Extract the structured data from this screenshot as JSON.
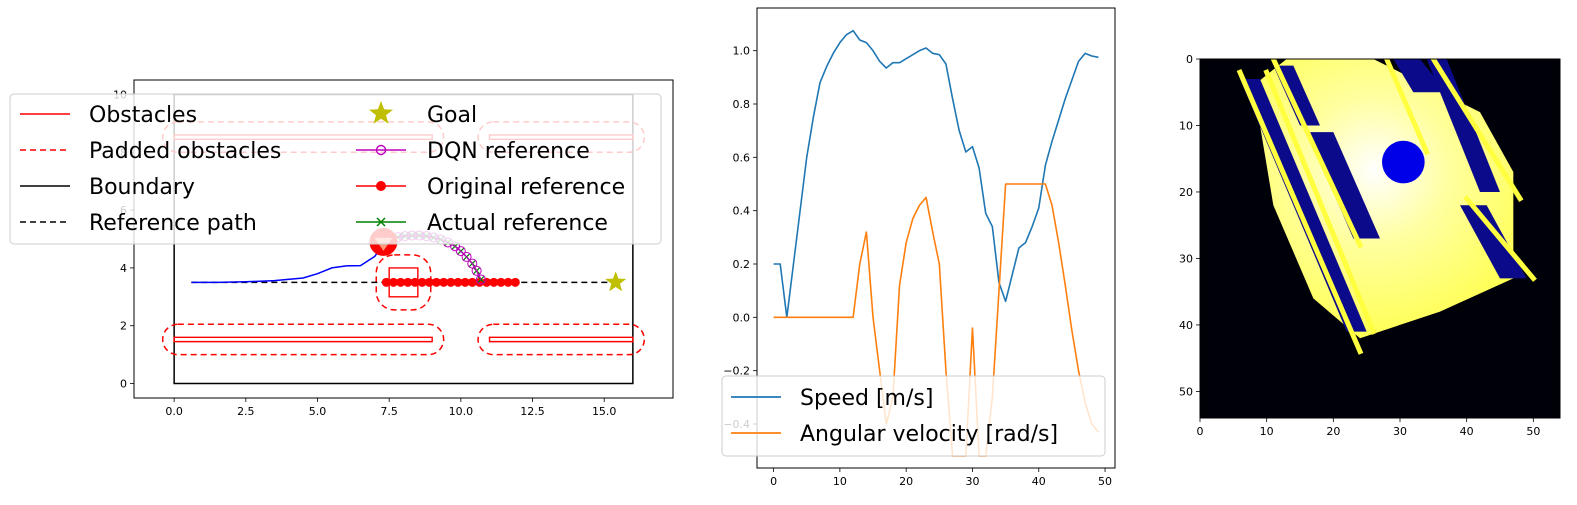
{
  "chart_data": [
    {
      "type": "line",
      "panel": "map",
      "xlim": [
        -1.4,
        17.4
      ],
      "ylim": [
        -0.5,
        10.5
      ],
      "xticks": [
        "0.0",
        "2.5",
        "5.0",
        "7.5",
        "10.0",
        "12.5",
        "15.0"
      ],
      "xtick_values": [
        0,
        2.5,
        5,
        7.5,
        10,
        12.5,
        15
      ],
      "yticks": [
        "0",
        "2",
        "4",
        "6",
        "8",
        "10"
      ],
      "ytick_values": [
        0,
        2,
        4,
        6,
        8,
        10
      ],
      "legend": {
        "placement": "upper-left",
        "entries": [
          {
            "label": "Obstacles",
            "color": "#ff0000",
            "style": "solid"
          },
          {
            "label": "Padded obstacles",
            "color": "#ff0000",
            "style": "dashed"
          },
          {
            "label": "Boundary",
            "color": "#000000",
            "style": "solid"
          },
          {
            "label": "Reference path",
            "color": "#000000",
            "style": "dashed"
          },
          {
            "label": "Goal",
            "color": "#bfbf00",
            "style": "star"
          },
          {
            "label": "DQN reference",
            "color": "#bf00bf",
            "style": "line-open-circle"
          },
          {
            "label": "Original reference",
            "color": "#ff0000",
            "style": "line-filled-circle"
          },
          {
            "label": "Actual reference",
            "color": "#008000",
            "style": "line-x"
          }
        ]
      },
      "boundary": [
        [
          0,
          0
        ],
        [
          16,
          0
        ],
        [
          16,
          10
        ],
        [
          0,
          10
        ]
      ],
      "obstacles": [
        [
          [
            0,
            1.45
          ],
          [
            9,
            1.45
          ],
          [
            9,
            1.6
          ],
          [
            0,
            1.6
          ]
        ],
        [
          [
            11,
            1.45
          ],
          [
            16,
            1.45
          ],
          [
            16,
            1.6
          ],
          [
            11,
            1.6
          ]
        ],
        [
          [
            0,
            8.45
          ],
          [
            9,
            8.45
          ],
          [
            9,
            8.6
          ],
          [
            0,
            8.6
          ]
        ],
        [
          [
            11,
            8.45
          ],
          [
            16,
            8.45
          ],
          [
            16,
            8.6
          ],
          [
            11,
            8.6
          ]
        ],
        [
          [
            7.5,
            3
          ],
          [
            8.5,
            3
          ],
          [
            8.5,
            4
          ],
          [
            7.5,
            4
          ]
        ]
      ],
      "padded_obstacles": [
        {
          "x0": -0.4,
          "y0": 1.0,
          "x1": 9.4,
          "y1": 2.05
        },
        {
          "x0": 10.6,
          "y0": 1.0,
          "x1": 16.4,
          "y1": 2.05
        },
        {
          "x0": -0.4,
          "y0": 8.0,
          "x1": 9.4,
          "y1": 9.05
        },
        {
          "x0": 10.6,
          "y0": 8.0,
          "x1": 16.4,
          "y1": 9.05
        },
        {
          "x0": 7.05,
          "y0": 2.55,
          "x1": 8.95,
          "y1": 4.45
        }
      ],
      "reference_path": {
        "x": [
          0.6,
          15.4
        ],
        "y": [
          3.5,
          3.5
        ]
      },
      "goal": {
        "x": 15.4,
        "y": 3.5
      },
      "trajectory": {
        "color": "#0000ff",
        "x": [
          0.6,
          1.5,
          2.5,
          3.5,
          4.5,
          5.0,
          5.5,
          6.0,
          6.5,
          7.0,
          7.3
        ],
        "y": [
          3.5,
          3.5,
          3.52,
          3.56,
          3.65,
          3.8,
          4.0,
          4.07,
          4.08,
          4.4,
          4.85
        ]
      },
      "robot": {
        "x": 7.3,
        "y": 4.9,
        "color": "#ff0000"
      },
      "original_reference": {
        "x": [
          7.4,
          7.65,
          7.9,
          8.15,
          8.4,
          8.65,
          8.9,
          9.15,
          9.4,
          9.65,
          9.9,
          10.15,
          10.4,
          10.65,
          10.9,
          11.15,
          11.4,
          11.65,
          11.9
        ],
        "y": [
          3.5,
          3.5,
          3.5,
          3.5,
          3.5,
          3.5,
          3.5,
          3.5,
          3.5,
          3.5,
          3.5,
          3.5,
          3.5,
          3.5,
          3.5,
          3.5,
          3.5,
          3.5,
          3.5
        ]
      },
      "dqn_reference": {
        "x": [
          7.55,
          7.8,
          8.05,
          8.3,
          8.55,
          8.8,
          9.05,
          9.3,
          9.55,
          9.8,
          10.0,
          10.2,
          10.4,
          10.55,
          10.7
        ],
        "y": [
          5.0,
          5.06,
          5.1,
          5.12,
          5.12,
          5.1,
          5.05,
          4.98,
          4.88,
          4.75,
          4.58,
          4.38,
          4.15,
          3.9,
          3.6
        ]
      },
      "actual_reference": {
        "x": [
          7.55,
          7.8,
          8.05,
          8.3,
          8.55,
          8.8,
          9.05,
          9.3,
          9.55,
          9.8,
          10.0,
          10.2,
          10.4,
          10.55,
          10.7
        ],
        "y": [
          5.0,
          5.06,
          5.1,
          5.12,
          5.12,
          5.1,
          5.05,
          4.98,
          4.88,
          4.75,
          4.58,
          4.38,
          4.15,
          3.9,
          3.6
        ]
      }
    },
    {
      "type": "line",
      "panel": "velocity",
      "xlim": [
        -2.5,
        51.5
      ],
      "ylim": [
        -0.565,
        1.16
      ],
      "xticks": [
        "0",
        "10",
        "20",
        "30",
        "40",
        "50"
      ],
      "xtick_values": [
        0,
        10,
        20,
        30,
        40,
        50
      ],
      "yticks": [
        "−0.4",
        "−0.2",
        "0.0",
        "0.2",
        "0.4",
        "0.6",
        "0.8",
        "1.0"
      ],
      "ytick_values": [
        -0.4,
        -0.2,
        0.0,
        0.2,
        0.4,
        0.6,
        0.8,
        1.0
      ],
      "legend": {
        "placement": "lower-left"
      },
      "series": [
        {
          "name": "Speed [m/s]",
          "color": "#1f77b4",
          "values": [
            0.2,
            0.2,
            0.0,
            0.2,
            0.4,
            0.6,
            0.75,
            0.88,
            0.94,
            0.99,
            1.03,
            1.06,
            1.075,
            1.04,
            1.03,
            1.0,
            0.96,
            0.935,
            0.955,
            0.955,
            0.97,
            0.985,
            1.0,
            1.01,
            0.99,
            0.985,
            0.95,
            0.82,
            0.7,
            0.62,
            0.64,
            0.56,
            0.39,
            0.34,
            0.13,
            0.06,
            0.16,
            0.26,
            0.28,
            0.34,
            0.41,
            0.57,
            0.66,
            0.74,
            0.82,
            0.89,
            0.96,
            0.99,
            0.98,
            0.975
          ]
        },
        {
          "name": "Angular velocity [rad/s]",
          "color": "#ff7f0e",
          "values": [
            0.0,
            0.0,
            0.0,
            0.0,
            0.0,
            0.0,
            0.0,
            0.0,
            0.0,
            0.0,
            0.0,
            0.0,
            0.0,
            0.2,
            0.32,
            0.0,
            -0.2,
            -0.4,
            -0.3,
            0.12,
            0.28,
            0.37,
            0.42,
            0.45,
            0.32,
            0.2,
            -0.2,
            -0.52,
            -0.52,
            -0.52,
            -0.04,
            -0.52,
            -0.52,
            -0.3,
            0.1,
            0.5,
            0.5,
            0.5,
            0.5,
            0.5,
            0.5,
            0.5,
            0.42,
            0.28,
            0.12,
            -0.05,
            -0.2,
            -0.32,
            -0.4,
            -0.43
          ]
        }
      ]
    },
    {
      "type": "heatmap",
      "panel": "local-map",
      "xlim": [
        0,
        54
      ],
      "ylim": [
        54,
        0
      ],
      "xticks": [
        "0",
        "10",
        "20",
        "30",
        "40",
        "50"
      ],
      "xtick_values": [
        0,
        10,
        20,
        30,
        40,
        50
      ],
      "yticks": [
        "0",
        "10",
        "20",
        "30",
        "40",
        "50"
      ],
      "ytick_values": [
        0,
        10,
        20,
        30,
        40,
        50
      ],
      "colormap": "black-blue-white-yellow",
      "free_region_polygon": [
        [
          13,
          0
        ],
        [
          26,
          0
        ],
        [
          42,
          8
        ],
        [
          47,
          17
        ],
        [
          47,
          33
        ],
        [
          36,
          38
        ],
        [
          24,
          42
        ],
        [
          17,
          36
        ],
        [
          11,
          22
        ],
        [
          8,
          4
        ]
      ],
      "obstacle_bands": [
        [
          [
            6,
            3
          ],
          [
            9,
            3
          ],
          [
            25,
            41
          ],
          [
            22,
            41
          ]
        ],
        [
          [
            11,
            1
          ],
          [
            14,
            1
          ],
          [
            18,
            10
          ],
          [
            15,
            10
          ]
        ],
        [
          [
            16,
            11
          ],
          [
            20,
            11
          ],
          [
            27,
            27
          ],
          [
            23,
            27
          ]
        ],
        [
          [
            29,
            0
          ],
          [
            33,
            0
          ],
          [
            37,
            5
          ],
          [
            32,
            5
          ]
        ],
        [
          [
            34,
            0
          ],
          [
            37,
            0
          ],
          [
            45,
            20
          ],
          [
            42,
            20
          ]
        ],
        [
          [
            39,
            22
          ],
          [
            43,
            22
          ],
          [
            49,
            33
          ],
          [
            45,
            33
          ]
        ]
      ],
      "yellow_lines": [
        [
          [
            6,
            2
          ],
          [
            24,
            44
          ]
        ],
        [
          [
            10,
            2
          ],
          [
            26,
            41
          ]
        ],
        [
          [
            11,
            0
          ],
          [
            24,
            28
          ]
        ],
        [
          [
            28,
            0
          ],
          [
            34,
            14
          ]
        ],
        [
          [
            35,
            0
          ],
          [
            48,
            21
          ]
        ],
        [
          [
            40,
            21
          ],
          [
            50,
            33
          ]
        ]
      ],
      "blue_blob": {
        "cx": 30.5,
        "cy": 15.5,
        "r": 3.2
      }
    }
  ],
  "legend_map": {
    "col1": [
      "Obstacles",
      "Padded obstacles",
      "Boundary",
      "Reference path"
    ],
    "col2": [
      "Goal",
      "DQN reference",
      "Original reference",
      "Actual reference"
    ]
  },
  "legend_velocity": [
    "Speed [m/s]",
    "Angular velocity [rad/s]"
  ]
}
